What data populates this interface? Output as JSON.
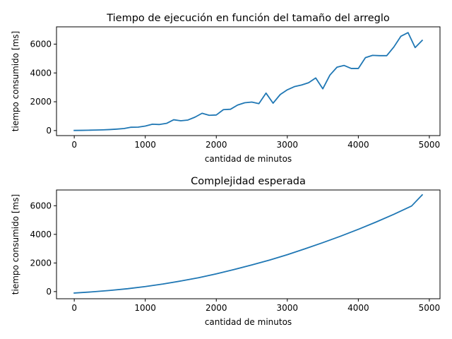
{
  "chart_data": [
    {
      "type": "line",
      "title": "Tiempo de ejecución en función del tamaño del arreglo",
      "xlabel": "cantidad de minutos",
      "ylabel": "tiempo consumido [ms]",
      "xlim": [
        -250,
        5150
      ],
      "ylim": [
        -350,
        7200
      ],
      "xticks": [
        0,
        1000,
        2000,
        3000,
        4000,
        5000
      ],
      "yticks": [
        0,
        2000,
        4000,
        6000
      ],
      "xtick_labels": [
        "0",
        "1000",
        "2000",
        "3000",
        "4000",
        "5000"
      ],
      "ytick_labels": [
        "0",
        "2000",
        "4000",
        "6000"
      ],
      "grid": false,
      "color": "#1f77b4",
      "series": [
        {
          "x": [
            0,
            100,
            200,
            300,
            400,
            500,
            600,
            700,
            800,
            900,
            1000,
            1100,
            1200,
            1300,
            1400,
            1500,
            1600,
            1700,
            1800,
            1900,
            2000,
            2100,
            2200,
            2300,
            2400,
            2500,
            2600,
            2700,
            2800,
            2900,
            3000,
            3100,
            3200,
            3300,
            3400,
            3500,
            3600,
            3700,
            3800,
            3900,
            4000,
            4100,
            4200,
            4300,
            4400,
            4500,
            4600,
            4700,
            4800,
            4900
          ],
          "y": [
            10,
            15,
            25,
            35,
            50,
            70,
            100,
            140,
            230,
            240,
            310,
            440,
            420,
            500,
            750,
            680,
            730,
            930,
            1200,
            1060,
            1080,
            1450,
            1480,
            1770,
            1930,
            1980,
            1870,
            2600,
            1900,
            2500,
            2830,
            3050,
            3160,
            3320,
            3650,
            2900,
            3850,
            4400,
            4520,
            4310,
            4310,
            5060,
            5220,
            5200,
            5200,
            5800,
            6550,
            6800,
            5760,
            6260
          ]
        }
      ]
    },
    {
      "type": "line",
      "title": "Complejidad esperada",
      "xlabel": "cantidad de minutos",
      "ylabel": "tiempo consumido [ms]",
      "xlim": [
        -250,
        5150
      ],
      "ylim": [
        -500,
        7100
      ],
      "xticks": [
        0,
        1000,
        2000,
        3000,
        4000,
        5000
      ],
      "yticks": [
        0,
        2000,
        4000,
        6000
      ],
      "xtick_labels": [
        "0",
        "1000",
        "2000",
        "3000",
        "4000",
        "5000"
      ],
      "ytick_labels": [
        "0",
        "2000",
        "4000",
        "6000"
      ],
      "grid": false,
      "color": "#1f77b4",
      "series": [
        {
          "x": [
            0,
            250,
            500,
            750,
            1000,
            1250,
            1500,
            1750,
            2000,
            2250,
            2500,
            2750,
            3000,
            3250,
            3500,
            3750,
            4000,
            4250,
            4500,
            4750,
            4900
          ],
          "y": [
            -100,
            -20,
            80,
            200,
            350,
            530,
            740,
            970,
            1240,
            1540,
            1860,
            2200,
            2580,
            2990,
            3420,
            3870,
            4350,
            4860,
            5400,
            5980,
            6760
          ]
        }
      ]
    }
  ]
}
